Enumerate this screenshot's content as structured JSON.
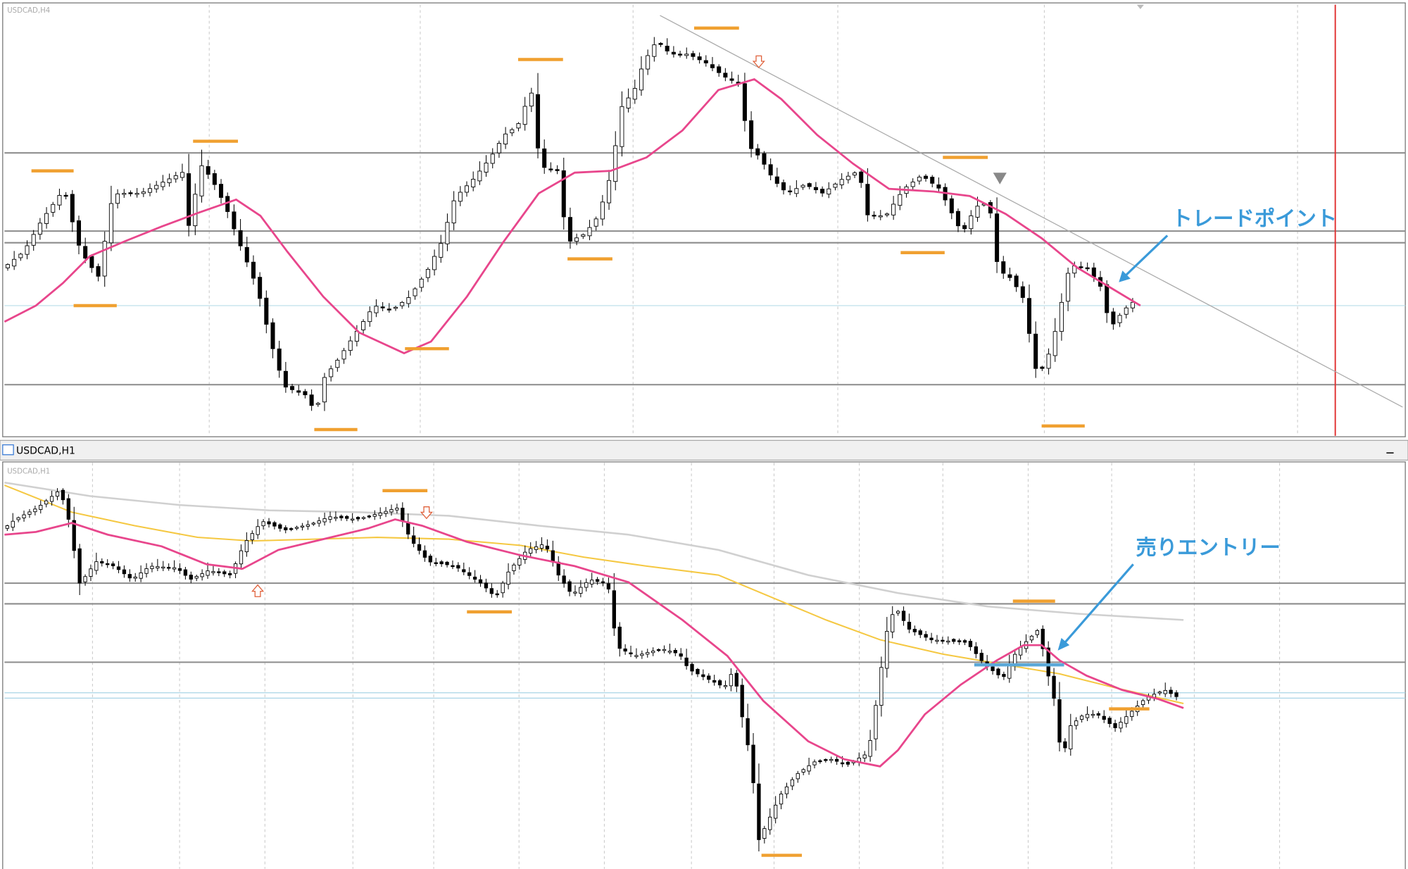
{
  "top_chart": {
    "label": "USDCAD,H4",
    "annotation": "トレードポイント"
  },
  "bottom_window": {
    "title": "USDCAD,H1",
    "chart_label": "USDCAD,H1",
    "annotation": "売りエントリー"
  }
}
